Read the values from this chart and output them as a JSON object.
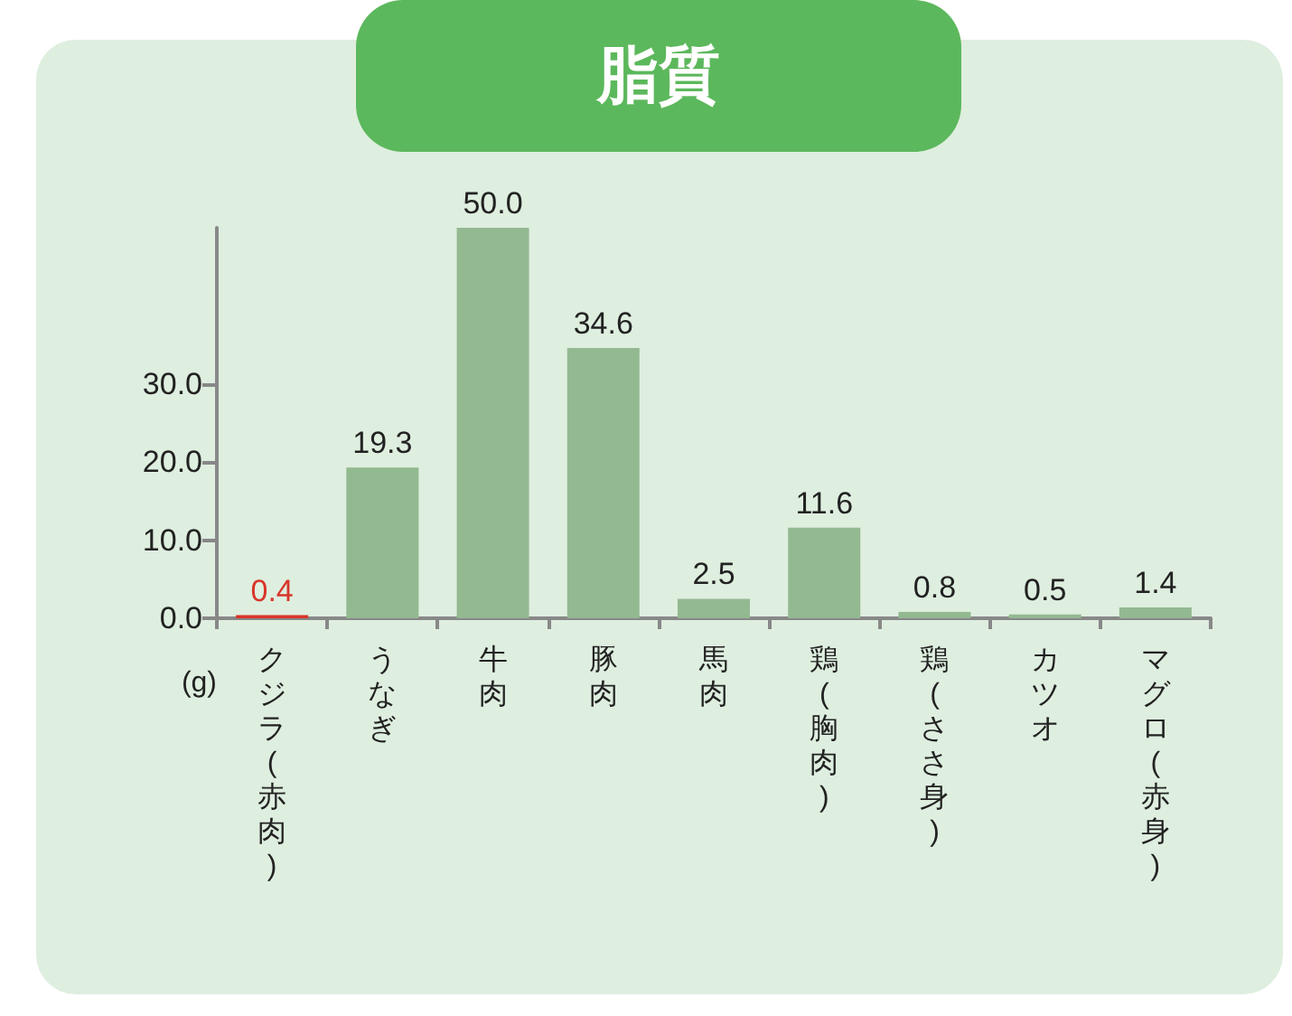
{
  "chart_data": {
    "type": "bar",
    "title": "脂質",
    "ylabel": "(g)",
    "categories": [
      "クジラ(赤肉)",
      "うなぎ",
      "牛肉",
      "豚肉",
      "馬肉",
      "鶏(胸肉)",
      "鶏(ささ身)",
      "カツオ",
      "マグロ(赤身)"
    ],
    "values": [
      0.4,
      19.3,
      50.0,
      34.6,
      2.5,
      11.6,
      0.8,
      0.5,
      1.4
    ],
    "value_labels": [
      "0.4",
      "19.3",
      "50.0",
      "34.6",
      "2.5",
      "11.6",
      "0.8",
      "0.5",
      "1.4"
    ],
    "color": "#93b991",
    "colors": [
      "#d9352a",
      "#93b991",
      "#93b991",
      "#93b991",
      "#93b991",
      "#93b991",
      "#93b991",
      "#93b991",
      "#93b991"
    ],
    "ylim": [
      0,
      50
    ],
    "yticks": [
      {
        "value": 0,
        "label": "0.0"
      },
      {
        "value": 10,
        "label": "10.0"
      },
      {
        "value": 20,
        "label": "20.0"
      },
      {
        "value": 30,
        "label": "30.0"
      }
    ],
    "grid": false
  }
}
